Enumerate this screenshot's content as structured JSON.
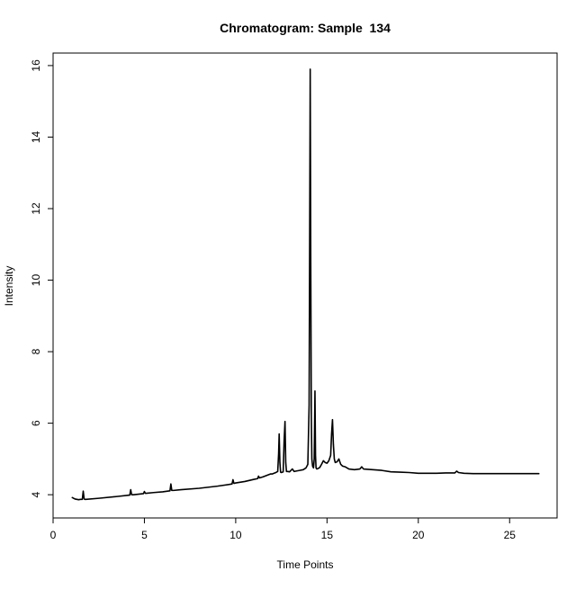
{
  "chart_data": {
    "type": "line",
    "title": "Chromatogram: Sample  134",
    "xlabel": "Time Points",
    "ylabel": "Intensity",
    "xlim": [
      0,
      27.6
    ],
    "ylim": [
      3.35,
      16.35
    ],
    "xticks": [
      0,
      5,
      10,
      15,
      20,
      25
    ],
    "yticks": [
      4,
      6,
      8,
      10,
      12,
      14,
      16
    ],
    "grid": false,
    "legend": "none",
    "line_color": "#000000",
    "series": [
      {
        "x": [
          1.05,
          1.2,
          1.3,
          1.4,
          1.5,
          1.6,
          1.65,
          1.7,
          1.75,
          1.8,
          2.5,
          3.5,
          4.2,
          4.25,
          4.3,
          4.35,
          4.4,
          4.95,
          5.0,
          5.05,
          5.1,
          5.5,
          6.0,
          6.4,
          6.45,
          6.5,
          6.55,
          6.6,
          7.0,
          8.0,
          9.0,
          9.8,
          9.85,
          9.9,
          9.95,
          10.0,
          10.5,
          11.0,
          11.2,
          11.25,
          11.3,
          11.5,
          11.9,
          12.0,
          12.1,
          12.2,
          12.3,
          12.35,
          12.38,
          12.42,
          12.46,
          12.5,
          12.6,
          12.65,
          12.7,
          12.74,
          12.78,
          12.85,
          12.95,
          13.1,
          13.2,
          13.3,
          13.5,
          13.7,
          13.85,
          13.95,
          14.02,
          14.05,
          14.08,
          14.11,
          14.14,
          14.17,
          14.21,
          14.26,
          14.3,
          14.34,
          14.37,
          14.4,
          14.44,
          14.5,
          14.6,
          14.7,
          14.8,
          14.9,
          15.0,
          15.1,
          15.2,
          15.25,
          15.3,
          15.35,
          15.4,
          15.45,
          15.55,
          15.65,
          15.75,
          15.85,
          16.0,
          16.2,
          16.5,
          16.8,
          16.9,
          17.0,
          17.5,
          18.0,
          18.5,
          19.0,
          19.5,
          20.0,
          20.5,
          21.0,
          21.5,
          22.0,
          22.1,
          22.2,
          22.5,
          23.0,
          24.0,
          25.0,
          26.0,
          26.6
        ],
        "y": [
          3.92,
          3.88,
          3.87,
          3.86,
          3.87,
          3.87,
          4.1,
          3.88,
          3.87,
          3.87,
          3.9,
          3.95,
          3.99,
          4.14,
          4.0,
          4.0,
          4.0,
          4.03,
          4.09,
          4.04,
          4.04,
          4.06,
          4.08,
          4.11,
          4.3,
          4.12,
          4.12,
          4.12,
          4.14,
          4.18,
          4.24,
          4.3,
          4.42,
          4.32,
          4.32,
          4.33,
          4.37,
          4.43,
          4.45,
          4.52,
          4.47,
          4.5,
          4.58,
          4.58,
          4.6,
          4.62,
          4.65,
          5.15,
          5.7,
          4.9,
          4.63,
          4.62,
          4.64,
          5.5,
          6.05,
          4.9,
          4.65,
          4.65,
          4.64,
          4.72,
          4.65,
          4.66,
          4.68,
          4.7,
          4.75,
          4.85,
          6.5,
          11.1,
          15.9,
          10.5,
          6.2,
          5.0,
          4.8,
          4.75,
          5.0,
          6.9,
          5.1,
          4.75,
          4.72,
          4.73,
          4.76,
          4.85,
          4.95,
          4.9,
          4.88,
          4.95,
          5.1,
          5.7,
          6.1,
          5.4,
          5.0,
          4.9,
          4.92,
          5.0,
          4.85,
          4.8,
          4.78,
          4.72,
          4.7,
          4.72,
          4.78,
          4.72,
          4.7,
          4.68,
          4.64,
          4.63,
          4.62,
          4.6,
          4.6,
          4.6,
          4.61,
          4.61,
          4.66,
          4.62,
          4.6,
          4.59,
          4.59,
          4.59,
          4.59,
          4.59
        ]
      }
    ]
  }
}
